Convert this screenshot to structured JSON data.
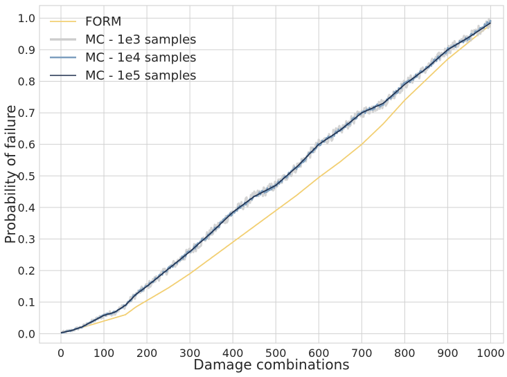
{
  "chart_data": {
    "type": "line",
    "xlabel": "Damage combinations",
    "ylabel": "Probability of failure",
    "xlim": [
      -50,
      1030
    ],
    "ylim": [
      -0.03,
      1.04
    ],
    "xticks": [
      0,
      100,
      200,
      300,
      400,
      500,
      600,
      700,
      800,
      900,
      1000
    ],
    "xtick_labels": [
      "0",
      "100",
      "200",
      "300",
      "400",
      "500",
      "600",
      "700",
      "800",
      "900",
      "1000"
    ],
    "yticks": [
      0.0,
      0.1,
      0.2,
      0.3,
      0.4,
      0.5,
      0.6,
      0.7,
      0.8,
      0.9,
      1.0
    ],
    "ytick_labels": [
      "0.0",
      "0.1",
      "0.2",
      "0.3",
      "0.4",
      "0.5",
      "0.6",
      "0.7",
      "0.8",
      "0.9",
      "1.0"
    ],
    "grid": true,
    "legend_position": "top-left",
    "series": [
      {
        "name": "FORM",
        "color": "#f2cf72",
        "noise": 0.0,
        "x": [
          0,
          25,
          50,
          75,
          100,
          125,
          150,
          175,
          200,
          250,
          300,
          350,
          400,
          450,
          500,
          550,
          600,
          650,
          700,
          750,
          800,
          850,
          900,
          950,
          1000
        ],
        "y": [
          0.003,
          0.01,
          0.02,
          0.03,
          0.04,
          0.05,
          0.06,
          0.085,
          0.105,
          0.145,
          0.19,
          0.24,
          0.29,
          0.34,
          0.39,
          0.44,
          0.495,
          0.545,
          0.6,
          0.665,
          0.74,
          0.805,
          0.87,
          0.925,
          0.98
        ]
      },
      {
        "name": "MC - 1e3 samples",
        "color": "#cccccc",
        "noise": 0.012,
        "x": [
          0,
          25,
          50,
          75,
          100,
          125,
          150,
          175,
          200,
          250,
          300,
          350,
          400,
          450,
          500,
          550,
          600,
          650,
          700,
          750,
          800,
          850,
          900,
          950,
          1000
        ],
        "y": [
          0.003,
          0.01,
          0.022,
          0.04,
          0.058,
          0.068,
          0.09,
          0.125,
          0.15,
          0.205,
          0.26,
          0.32,
          0.385,
          0.435,
          0.47,
          0.53,
          0.6,
          0.645,
          0.7,
          0.73,
          0.79,
          0.84,
          0.9,
          0.94,
          0.99
        ]
      },
      {
        "name": "MC - 1e4 samples",
        "color": "#7d9fbf",
        "noise": 0.005,
        "x": [
          0,
          25,
          50,
          75,
          100,
          125,
          150,
          175,
          200,
          250,
          300,
          350,
          400,
          450,
          500,
          550,
          600,
          650,
          700,
          750,
          800,
          850,
          900,
          950,
          1000
        ],
        "y": [
          0.003,
          0.01,
          0.022,
          0.04,
          0.058,
          0.068,
          0.09,
          0.125,
          0.15,
          0.205,
          0.26,
          0.32,
          0.385,
          0.435,
          0.47,
          0.53,
          0.6,
          0.645,
          0.7,
          0.73,
          0.79,
          0.84,
          0.9,
          0.94,
          0.99
        ]
      },
      {
        "name": "MC - 1e5 samples",
        "color": "#1f2f4d",
        "noise": 0.0,
        "x": [
          0,
          25,
          50,
          75,
          100,
          125,
          150,
          175,
          200,
          250,
          300,
          350,
          400,
          450,
          500,
          550,
          600,
          650,
          700,
          750,
          800,
          850,
          900,
          950,
          1000
        ],
        "y": [
          0.003,
          0.01,
          0.022,
          0.04,
          0.058,
          0.068,
          0.09,
          0.125,
          0.15,
          0.205,
          0.26,
          0.32,
          0.385,
          0.435,
          0.47,
          0.53,
          0.6,
          0.645,
          0.7,
          0.73,
          0.79,
          0.84,
          0.9,
          0.94,
          0.985
        ]
      }
    ]
  }
}
